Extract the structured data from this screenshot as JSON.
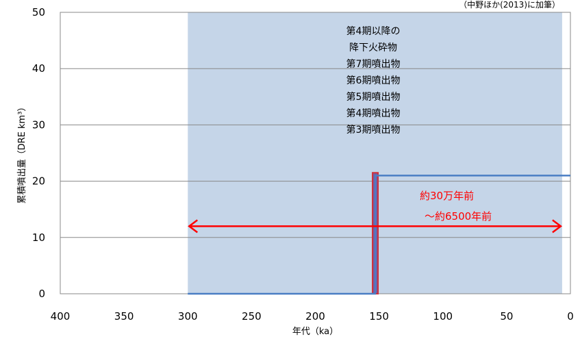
{
  "chart_data": {
    "type": "line",
    "source_note": "（中野ほか(2013)に加筆）",
    "xlabel": "年代（ka）",
    "ylabel": "累積噴出量（DRE km³）",
    "xlim": [
      400,
      0
    ],
    "ylim": [
      0,
      50
    ],
    "x_ticks": [
      400,
      350,
      300,
      250,
      200,
      150,
      100,
      50,
      0
    ],
    "y_ticks": [
      0,
      10,
      20,
      30,
      40,
      50
    ],
    "grid": "horizontal",
    "shaded_period": {
      "from_ka": 300,
      "to_ka": 6.5,
      "color": "#c5d5e8"
    },
    "deposit_labels": [
      "第4期以降の",
      "降下火砕物",
      "第7期噴出物",
      "第6期噴出物",
      "第5期噴出物",
      "第4期噴出物",
      "第3期噴出物"
    ],
    "series": [
      {
        "points": [
          [
            300,
            0
          ],
          [
            153,
            0
          ],
          [
            153,
            21
          ],
          [
            0,
            21
          ]
        ],
        "color": "#4a7ec4"
      }
    ],
    "highlight_bar": {
      "x_ka": 153,
      "from": 0,
      "to": 21.5,
      "fill": "#7a5aa0",
      "stroke": "#d0303a"
    },
    "range_arrow": {
      "from_ka": 300,
      "to_ka": 6.5,
      "y": 12,
      "color": "#ff0000"
    },
    "range_labels": [
      "約30万年前",
      "～約6500年前"
    ]
  }
}
